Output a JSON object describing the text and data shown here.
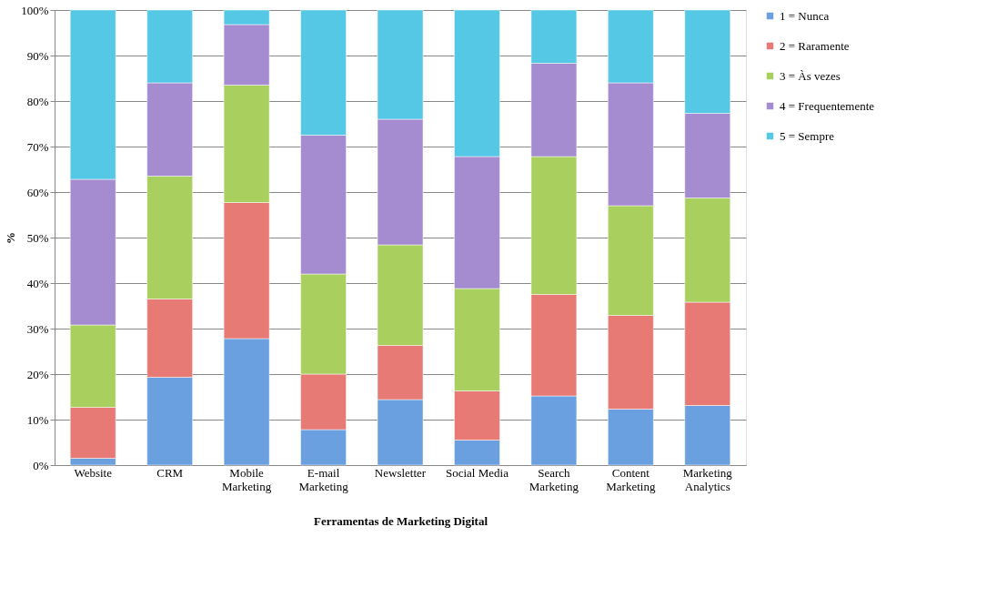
{
  "chart_data": {
    "type": "bar",
    "stacked": true,
    "xlabel": "Ferramentas de Marketing Digital",
    "ylabel": "%",
    "categories": [
      "Website",
      "CRM",
      "Mobile\nMarketing",
      "E-mail\nMarketing",
      "Newsletter",
      "Social Media",
      "Search\nMarketing",
      "Content\nMarketing",
      "Marketing\nAnalytics"
    ],
    "series": [
      {
        "name": "1 = Nunca",
        "color": "#6a9fe0",
        "values": [
          1.5,
          19.3,
          27.8,
          7.8,
          14.4,
          5.5,
          15.2,
          12.3,
          13.1
        ]
      },
      {
        "name": "2 = Raramente",
        "color": "#e87a75",
        "values": [
          11.2,
          17.2,
          29.9,
          12.2,
          11.9,
          10.8,
          22.3,
          20.6,
          22.7
        ]
      },
      {
        "name": "3 = Às vezes",
        "color": "#a9d05e",
        "values": [
          18.1,
          27,
          25.8,
          22,
          22.1,
          22.5,
          30.3,
          24.1,
          22.9
        ]
      },
      {
        "name": "4 = Frequentemente",
        "color": "#a58bd0",
        "values": [
          32,
          20.5,
          13.3,
          30.5,
          27.6,
          29,
          20.5,
          27,
          18.6
        ]
      },
      {
        "name": "5 = Sempre",
        "color": "#55c8e6",
        "values": [
          37.2,
          16,
          3.2,
          27.5,
          24,
          32.2,
          11.7,
          16,
          22.7
        ]
      }
    ],
    "ylim": [
      0,
      100
    ],
    "yticks": [
      {
        "value": 0,
        "label": "0%"
      },
      {
        "value": 10,
        "label": "10%"
      },
      {
        "value": 20,
        "label": "20%"
      },
      {
        "value": 30,
        "label": "30%"
      },
      {
        "value": 40,
        "label": "40%"
      },
      {
        "value": 50,
        "label": "50%"
      },
      {
        "value": 60,
        "label": "60%"
      },
      {
        "value": 70,
        "label": "70%"
      },
      {
        "value": 80,
        "label": "80%"
      },
      {
        "value": 90,
        "label": "90%"
      },
      {
        "value": 100,
        "label": "100%"
      }
    ],
    "grid": "y",
    "legend": "right"
  }
}
